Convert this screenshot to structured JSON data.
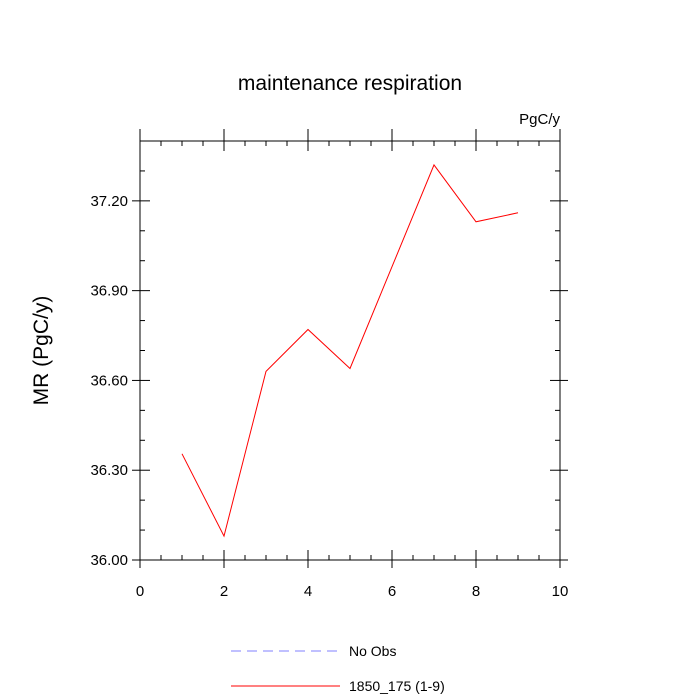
{
  "chart_data": {
    "type": "line",
    "title": "maintenance respiration",
    "units_label": "PgC/y",
    "xlabel": "",
    "ylabel": "MR  (PgC/y)",
    "xlim": [
      0,
      10
    ],
    "ylim": [
      36.0,
      37.4
    ],
    "x_ticks": [
      0,
      2,
      4,
      6,
      8,
      10
    ],
    "x_tick_labels": [
      "0",
      "2",
      "4",
      "6",
      "8",
      "10"
    ],
    "y_ticks": [
      36.0,
      36.3,
      36.6,
      36.9,
      37.2
    ],
    "y_tick_labels": [
      "36.00",
      "36.30",
      "36.60",
      "36.90",
      "37.20"
    ],
    "grid": false,
    "legend_position": "bottom-center",
    "series": [
      {
        "name": "No Obs",
        "color": "#8080ff",
        "dash": "dashed",
        "x": [],
        "y": []
      },
      {
        "name": "1850_175 (1-9)",
        "color": "#ff0000",
        "dash": "solid",
        "x": [
          1,
          2,
          3,
          4,
          5,
          6,
          7,
          8,
          9
        ],
        "y": [
          36.355,
          36.08,
          36.63,
          36.77,
          36.64,
          36.98,
          37.32,
          37.13,
          37.16
        ]
      }
    ]
  }
}
